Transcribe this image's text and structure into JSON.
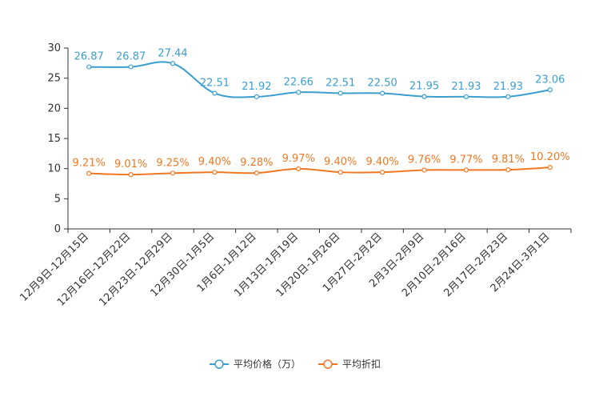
{
  "chart_data": {
    "type": "line",
    "categories": [
      "12月9日-12月15日",
      "12月16日-12月22日",
      "12月23日-12月29日",
      "12月30日-1月5日",
      "1月6日-1月12日",
      "1月13日-1月19日",
      "1月20日-1月26日",
      "1月27日-2月2日",
      "2月3日-2月9日",
      "2月10日-2月16日",
      "2月17日-2月23日",
      "2月24日-3月1日"
    ],
    "ylim": [
      0,
      30
    ],
    "yticks": [
      0,
      5,
      10,
      15,
      20,
      25,
      30
    ],
    "series": [
      {
        "name": "平均价格（万）",
        "color": "#3a9fcf",
        "values": [
          26.87,
          26.87,
          27.44,
          22.51,
          21.92,
          22.66,
          22.51,
          22.5,
          21.95,
          21.93,
          21.93,
          23.06
        ],
        "labels": [
          "26.87",
          "26.87",
          "27.44",
          "22.51",
          "21.92",
          "22.66",
          "22.51",
          "22.50",
          "21.95",
          "21.93",
          "21.93",
          "23.06"
        ]
      },
      {
        "name": "平均折扣",
        "color": "#f07823",
        "values": [
          9.21,
          9.01,
          9.25,
          9.4,
          9.28,
          9.97,
          9.4,
          9.4,
          9.76,
          9.77,
          9.81,
          10.2
        ],
        "labels": [
          "9.21%",
          "9.01%",
          "9.25%",
          "9.40%",
          "9.28%",
          "9.97%",
          "9.40%",
          "9.40%",
          "9.76%",
          "9.77%",
          "9.81%",
          "10.20%"
        ]
      }
    ],
    "legend_position": "bottom-center"
  }
}
